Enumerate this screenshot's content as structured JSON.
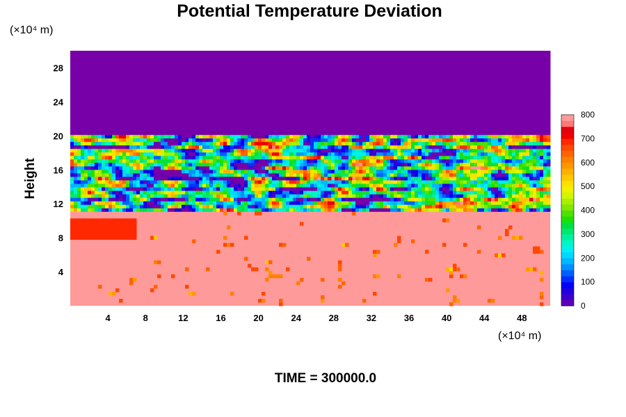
{
  "chart_data": {
    "type": "heatmap",
    "title": "Potential Temperature Deviation",
    "ylabel": "Height",
    "xlabel": "",
    "x_unit": "(×10⁴ m)",
    "y_unit": "(×10⁴ m)",
    "xlim": [
      0,
      51
    ],
    "ylim": [
      0,
      30
    ],
    "x_ticks": [
      4,
      8,
      12,
      16,
      20,
      24,
      28,
      32,
      36,
      40,
      44,
      48
    ],
    "y_ticks": [
      4,
      8,
      12,
      16,
      20,
      24,
      28
    ],
    "grid": false,
    "colorbar": {
      "ticks": [
        0,
        100,
        200,
        300,
        400,
        500,
        600,
        700,
        800
      ],
      "levels": [
        {
          "value": 0,
          "color": "#7700a8"
        },
        {
          "value": 25,
          "color": "#6000b8"
        },
        {
          "value": 50,
          "color": "#3d00cc"
        },
        {
          "value": 75,
          "color": "#1e00e0"
        },
        {
          "value": 100,
          "color": "#0000f5"
        },
        {
          "value": 125,
          "color": "#0030ff"
        },
        {
          "value": 150,
          "color": "#0060ff"
        },
        {
          "value": 175,
          "color": "#0090ff"
        },
        {
          "value": 200,
          "color": "#00b8ff"
        },
        {
          "value": 225,
          "color": "#00d8ff"
        },
        {
          "value": 250,
          "color": "#00f0f0"
        },
        {
          "value": 275,
          "color": "#00f5c8"
        },
        {
          "value": 300,
          "color": "#00f0a0"
        },
        {
          "value": 325,
          "color": "#00e870"
        },
        {
          "value": 350,
          "color": "#00e040"
        },
        {
          "value": 375,
          "color": "#20e000"
        },
        {
          "value": 400,
          "color": "#50e000"
        },
        {
          "value": 425,
          "color": "#80e800"
        },
        {
          "value": 450,
          "color": "#a8f000"
        },
        {
          "value": 475,
          "color": "#d0f500"
        },
        {
          "value": 500,
          "color": "#f0f000"
        },
        {
          "value": 525,
          "color": "#ffe000"
        },
        {
          "value": 550,
          "color": "#ffc800"
        },
        {
          "value": 575,
          "color": "#ffb000"
        },
        {
          "value": 600,
          "color": "#ff9800"
        },
        {
          "value": 625,
          "color": "#ff8000"
        },
        {
          "value": 650,
          "color": "#ff6400"
        },
        {
          "value": 675,
          "color": "#ff4800"
        },
        {
          "value": 700,
          "color": "#ff2800"
        },
        {
          "value": 725,
          "color": "#f00000"
        },
        {
          "value": 750,
          "color": "#e00010"
        },
        {
          "value": 775,
          "color": "#ff7878"
        },
        {
          "value": 800,
          "color": "#ff9a9a"
        }
      ]
    },
    "regions": {
      "upper_value": 0,
      "lower_value": 800,
      "turbulent_layer": [
        11,
        20
      ],
      "upper_color": "#7700a8",
      "lower_color": "#ff9a9a"
    }
  },
  "footer": {
    "time_label": "TIME = 300000.0"
  }
}
